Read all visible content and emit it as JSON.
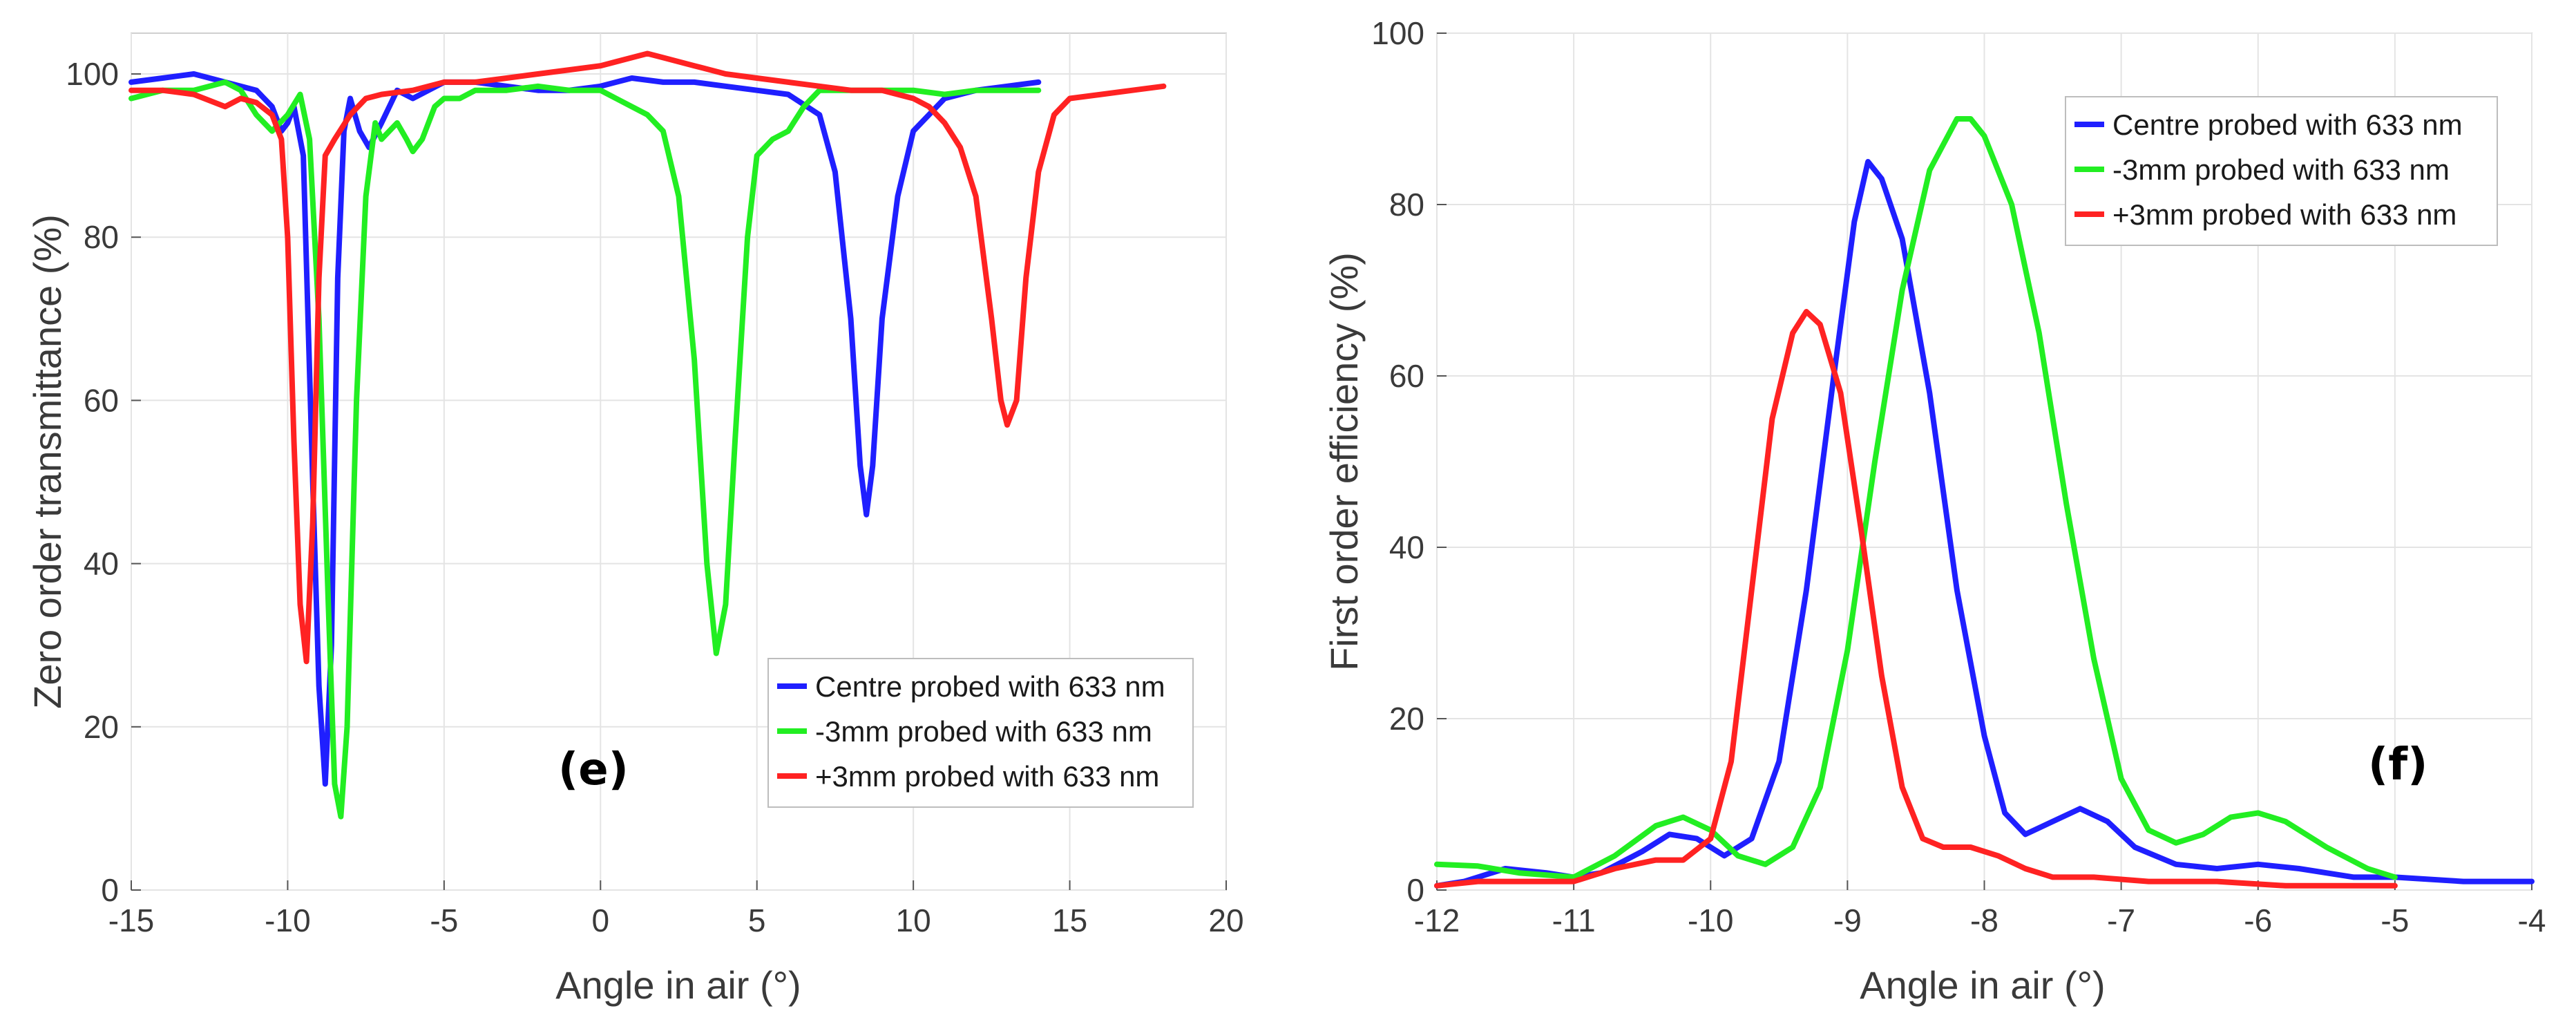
{
  "chart_data": [
    {
      "type": "line",
      "panel_label": "(e)",
      "xlabel": "Angle in air (°)",
      "ylabel": "Zero order transmittance (%)",
      "xlim": [
        -15,
        20
      ],
      "ylim": [
        0,
        105
      ],
      "xticks": [
        -15,
        -10,
        -5,
        0,
        5,
        10,
        15,
        20
      ],
      "yticks": [
        0,
        20,
        40,
        60,
        80,
        100
      ],
      "grid": true,
      "legend_position": "bottom-right",
      "series": [
        {
          "name": "Centre probed with 633 nm",
          "color": "#1f1fff",
          "points": [
            [
              -15,
              99
            ],
            [
              -14,
              99.5
            ],
            [
              -13,
              100
            ],
            [
              -12,
              99
            ],
            [
              -11,
              98
            ],
            [
              -10.5,
              96
            ],
            [
              -10.2,
              93
            ],
            [
              -10,
              94
            ],
            [
              -9.8,
              96
            ],
            [
              -9.5,
              90
            ],
            [
              -9.2,
              50
            ],
            [
              -9,
              25
            ],
            [
              -8.8,
              13
            ],
            [
              -8.6,
              30
            ],
            [
              -8.4,
              75
            ],
            [
              -8.2,
              93
            ],
            [
              -8,
              97
            ],
            [
              -7.7,
              93
            ],
            [
              -7.4,
              91
            ],
            [
              -7,
              94
            ],
            [
              -6.5,
              98
            ],
            [
              -6,
              97
            ],
            [
              -5.5,
              98
            ],
            [
              -5,
              99
            ],
            [
              -4,
              99
            ],
            [
              -3,
              98.5
            ],
            [
              -2,
              98
            ],
            [
              -1,
              98
            ],
            [
              0,
              98.5
            ],
            [
              1,
              99.5
            ],
            [
              2,
              99
            ],
            [
              3,
              99
            ],
            [
              4,
              98.5
            ],
            [
              5,
              98
            ],
            [
              6,
              97.5
            ],
            [
              7,
              95
            ],
            [
              7.5,
              88
            ],
            [
              8,
              70
            ],
            [
              8.3,
              52
            ],
            [
              8.5,
              46
            ],
            [
              8.7,
              52
            ],
            [
              9,
              70
            ],
            [
              9.5,
              85
            ],
            [
              10,
              93
            ],
            [
              11,
              97
            ],
            [
              12,
              98
            ],
            [
              13,
              98.5
            ],
            [
              14,
              99
            ]
          ]
        },
        {
          "name": "-3mm probed with 633 nm",
          "color": "#22ee22",
          "points": [
            [
              -15,
              97
            ],
            [
              -14,
              98
            ],
            [
              -13,
              98
            ],
            [
              -12,
              99
            ],
            [
              -11.5,
              98
            ],
            [
              -11,
              95
            ],
            [
              -10.5,
              93
            ],
            [
              -10,
              95
            ],
            [
              -9.6,
              97.5
            ],
            [
              -9.3,
              92
            ],
            [
              -9,
              70
            ],
            [
              -8.7,
              35
            ],
            [
              -8.5,
              13
            ],
            [
              -8.3,
              9
            ],
            [
              -8.1,
              20
            ],
            [
              -7.8,
              60
            ],
            [
              -7.5,
              85
            ],
            [
              -7.2,
              94
            ],
            [
              -7,
              92
            ],
            [
              -6.5,
              94
            ],
            [
              -6.2,
              92
            ],
            [
              -6,
              90.5
            ],
            [
              -5.7,
              92
            ],
            [
              -5.3,
              96
            ],
            [
              -5,
              97
            ],
            [
              -4.5,
              97
            ],
            [
              -4,
              98
            ],
            [
              -3,
              98
            ],
            [
              -2,
              98.5
            ],
            [
              -1,
              98
            ],
            [
              0,
              98
            ],
            [
              0.5,
              97
            ],
            [
              1,
              96
            ],
            [
              1.5,
              95
            ],
            [
              2,
              93
            ],
            [
              2.5,
              85
            ],
            [
              3,
              65
            ],
            [
              3.4,
              40
            ],
            [
              3.7,
              29
            ],
            [
              4,
              35
            ],
            [
              4.3,
              55
            ],
            [
              4.7,
              80
            ],
            [
              5,
              90
            ],
            [
              5.5,
              92
            ],
            [
              6,
              93
            ],
            [
              6.5,
              96
            ],
            [
              7,
              98
            ],
            [
              8,
              98
            ],
            [
              9,
              98
            ],
            [
              10,
              98
            ],
            [
              11,
              97.5
            ],
            [
              12,
              98
            ],
            [
              13,
              98
            ],
            [
              14,
              98
            ]
          ]
        },
        {
          "name": "+3mm probed with 633 nm",
          "color": "#ff2222",
          "points": [
            [
              -15,
              98
            ],
            [
              -14,
              98
            ],
            [
              -13,
              97.5
            ],
            [
              -12,
              96
            ],
            [
              -11.5,
              97
            ],
            [
              -11,
              96.5
            ],
            [
              -10.5,
              95
            ],
            [
              -10.2,
              92
            ],
            [
              -10,
              80
            ],
            [
              -9.8,
              55
            ],
            [
              -9.6,
              35
            ],
            [
              -9.4,
              28
            ],
            [
              -9.2,
              45
            ],
            [
              -9,
              75
            ],
            [
              -8.8,
              90
            ],
            [
              -8.5,
              92
            ],
            [
              -8,
              95
            ],
            [
              -7.5,
              97
            ],
            [
              -7,
              97.5
            ],
            [
              -6,
              98
            ],
            [
              -5,
              99
            ],
            [
              -4,
              99
            ],
            [
              -3,
              99.5
            ],
            [
              -2,
              100
            ],
            [
              -1,
              100.5
            ],
            [
              0,
              101
            ],
            [
              1,
              102
            ],
            [
              1.5,
              102.5
            ],
            [
              2,
              102
            ],
            [
              3,
              101
            ],
            [
              4,
              100
            ],
            [
              5,
              99.5
            ],
            [
              6,
              99
            ],
            [
              7,
              98.5
            ],
            [
              8,
              98
            ],
            [
              9,
              98
            ],
            [
              10,
              97
            ],
            [
              10.5,
              96
            ],
            [
              11,
              94
            ],
            [
              11.5,
              91
            ],
            [
              12,
              85
            ],
            [
              12.5,
              70
            ],
            [
              12.8,
              60
            ],
            [
              13,
              57
            ],
            [
              13.3,
              60
            ],
            [
              13.6,
              75
            ],
            [
              14,
              88
            ],
            [
              14.5,
              95
            ],
            [
              15,
              97
            ],
            [
              16,
              97.5
            ],
            [
              17,
              98
            ],
            [
              18,
              98.5
            ]
          ]
        }
      ]
    },
    {
      "type": "line",
      "panel_label": "(f)",
      "xlabel": "Angle in air (°)",
      "ylabel": "First order efficiency (%)",
      "xlim": [
        -12,
        -4
      ],
      "ylim": [
        0,
        100
      ],
      "xticks": [
        -12,
        -11,
        -10,
        -9,
        -8,
        -7,
        -6,
        -5,
        -4
      ],
      "yticks": [
        0,
        20,
        40,
        60,
        80,
        100
      ],
      "grid": true,
      "legend_position": "top-right",
      "series": [
        {
          "name": "Centre probed with 633 nm",
          "color": "#1f1fff",
          "points": [
            [
              -12,
              0.5
            ],
            [
              -11.8,
              1
            ],
            [
              -11.5,
              2.5
            ],
            [
              -11.2,
              2
            ],
            [
              -11,
              1.5
            ],
            [
              -10.8,
              2
            ],
            [
              -10.5,
              4.5
            ],
            [
              -10.3,
              6.5
            ],
            [
              -10.1,
              6
            ],
            [
              -9.9,
              4
            ],
            [
              -9.7,
              6
            ],
            [
              -9.5,
              15
            ],
            [
              -9.3,
              35
            ],
            [
              -9.1,
              60
            ],
            [
              -8.95,
              78
            ],
            [
              -8.85,
              85
            ],
            [
              -8.75,
              83
            ],
            [
              -8.6,
              76
            ],
            [
              -8.4,
              58
            ],
            [
              -8.2,
              35
            ],
            [
              -8,
              18
            ],
            [
              -7.85,
              9
            ],
            [
              -7.7,
              6.5
            ],
            [
              -7.5,
              8
            ],
            [
              -7.3,
              9.5
            ],
            [
              -7.1,
              8
            ],
            [
              -6.9,
              5
            ],
            [
              -6.6,
              3
            ],
            [
              -6.3,
              2.5
            ],
            [
              -6,
              3
            ],
            [
              -5.7,
              2.5
            ],
            [
              -5.3,
              1.5
            ],
            [
              -5,
              1.5
            ],
            [
              -4.5,
              1
            ],
            [
              -4,
              1
            ]
          ]
        },
        {
          "name": "-3mm probed with 633 nm",
          "color": "#22ee22",
          "points": [
            [
              -12,
              3
            ],
            [
              -11.7,
              2.8
            ],
            [
              -11.4,
              2
            ],
            [
              -11,
              1.5
            ],
            [
              -10.7,
              4
            ],
            [
              -10.4,
              7.5
            ],
            [
              -10.2,
              8.5
            ],
            [
              -10,
              7
            ],
            [
              -9.8,
              4
            ],
            [
              -9.6,
              3
            ],
            [
              -9.4,
              5
            ],
            [
              -9.2,
              12
            ],
            [
              -9,
              28
            ],
            [
              -8.8,
              50
            ],
            [
              -8.6,
              70
            ],
            [
              -8.4,
              84
            ],
            [
              -8.2,
              90
            ],
            [
              -8.1,
              90
            ],
            [
              -8,
              88
            ],
            [
              -7.8,
              80
            ],
            [
              -7.6,
              65
            ],
            [
              -7.4,
              45
            ],
            [
              -7.2,
              27
            ],
            [
              -7,
              13
            ],
            [
              -6.8,
              7
            ],
            [
              -6.6,
              5.5
            ],
            [
              -6.4,
              6.5
            ],
            [
              -6.2,
              8.5
            ],
            [
              -6,
              9
            ],
            [
              -5.8,
              8
            ],
            [
              -5.5,
              5
            ],
            [
              -5.2,
              2.5
            ],
            [
              -5,
              1.5
            ]
          ]
        },
        {
          "name": "+3mm probed with 633 nm",
          "color": "#ff2222",
          "points": [
            [
              -12,
              0.5
            ],
            [
              -11.7,
              1
            ],
            [
              -11.4,
              1
            ],
            [
              -11,
              1
            ],
            [
              -10.7,
              2.5
            ],
            [
              -10.4,
              3.5
            ],
            [
              -10.2,
              3.5
            ],
            [
              -10,
              6
            ],
            [
              -9.85,
              15
            ],
            [
              -9.7,
              35
            ],
            [
              -9.55,
              55
            ],
            [
              -9.4,
              65
            ],
            [
              -9.3,
              67.5
            ],
            [
              -9.2,
              66
            ],
            [
              -9.05,
              58
            ],
            [
              -8.9,
              42
            ],
            [
              -8.75,
              25
            ],
            [
              -8.6,
              12
            ],
            [
              -8.45,
              6
            ],
            [
              -8.3,
              5
            ],
            [
              -8.1,
              5
            ],
            [
              -7.9,
              4
            ],
            [
              -7.7,
              2.5
            ],
            [
              -7.5,
              1.5
            ],
            [
              -7.2,
              1.5
            ],
            [
              -6.8,
              1
            ],
            [
              -6.3,
              1
            ],
            [
              -5.8,
              0.5
            ],
            [
              -5.3,
              0.5
            ],
            [
              -5,
              0.5
            ]
          ]
        }
      ]
    }
  ]
}
